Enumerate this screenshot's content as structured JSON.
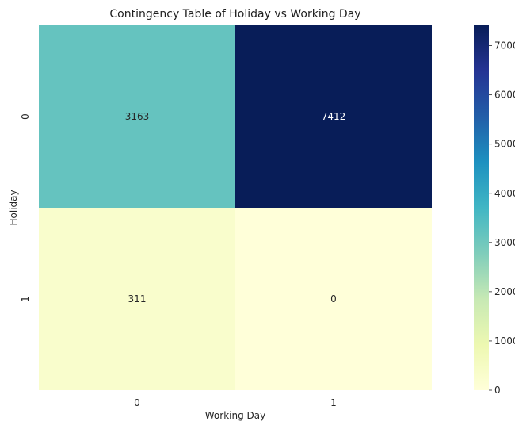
{
  "chart_data": {
    "type": "heatmap",
    "title": "Contingency Table of Holiday vs Working Day",
    "xlabel": "Working Day",
    "ylabel": "Holiday",
    "x_categories": [
      "0",
      "1"
    ],
    "y_categories": [
      "0",
      "1"
    ],
    "values": [
      [
        3163,
        7412
      ],
      [
        311,
        0
      ]
    ],
    "colormap": "YlGnBu",
    "vmin": 0,
    "vmax": 7412,
    "colorbar_ticks": [
      0,
      1000,
      2000,
      3000,
      4000,
      5000,
      6000,
      7000
    ]
  }
}
